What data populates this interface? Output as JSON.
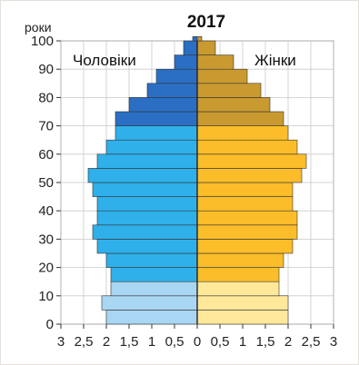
{
  "chart_data": {
    "type": "bar",
    "orientation": "horizontal-pyramid",
    "title": "2017",
    "ylabel": "роки",
    "xlabel": "",
    "y_ticks": [
      "0",
      "10",
      "20",
      "30",
      "40",
      "50",
      "60",
      "70",
      "80",
      "90",
      "100"
    ],
    "x_ticks_left": [
      "3",
      "2,5",
      "2",
      "1,5",
      "1",
      "0,5",
      "0"
    ],
    "x_ticks_right": [
      "0,5",
      "1",
      "1,5",
      "2",
      "2,5",
      "3"
    ],
    "xlim": [
      0,
      3
    ],
    "ylim": [
      0,
      100
    ],
    "grid": true,
    "age_group_width": 5,
    "age_groups_start": [
      0,
      5,
      10,
      15,
      20,
      25,
      30,
      35,
      40,
      45,
      50,
      55,
      60,
      65,
      70,
      75,
      80,
      85,
      90,
      95,
      100
    ],
    "series": [
      {
        "name": "Чоловіки",
        "side": "left",
        "values": [
          2.0,
          2.1,
          1.9,
          1.9,
          2.0,
          2.2,
          2.3,
          2.2,
          2.2,
          2.3,
          2.4,
          2.2,
          2.0,
          1.8,
          1.8,
          1.5,
          1.1,
          0.9,
          0.5,
          0.3,
          0.1
        ],
        "colors": [
          "#a9d6f2",
          "#a9d6f2",
          "#a9d6f2",
          "#2fb0ea",
          "#2fb0ea",
          "#2fb0ea",
          "#2fb0ea",
          "#2fb0ea",
          "#2fb0ea",
          "#2fb0ea",
          "#2fb0ea",
          "#2fb0ea",
          "#2fb0ea",
          "#2fb0ea",
          "#2a6fc4",
          "#2a6fc4",
          "#2a6fc4",
          "#2a6fc4",
          "#2a6fc4",
          "#2a6fc4",
          "#2a6fc4"
        ]
      },
      {
        "name": "Жінки",
        "side": "right",
        "values": [
          2.0,
          2.0,
          1.8,
          1.8,
          1.9,
          2.1,
          2.2,
          2.2,
          2.1,
          2.1,
          2.3,
          2.4,
          2.2,
          2.0,
          1.9,
          1.6,
          1.4,
          1.1,
          0.8,
          0.4,
          0.1
        ],
        "colors": [
          "#ffe89a",
          "#ffe89a",
          "#ffe89a",
          "#fbbd2a",
          "#fbbd2a",
          "#fbbd2a",
          "#fbbd2a",
          "#fbbd2a",
          "#fbbd2a",
          "#fbbd2a",
          "#fbbd2a",
          "#fbbd2a",
          "#fbbd2a",
          "#fbbd2a",
          "#c99a30",
          "#c99a30",
          "#c99a30",
          "#c99a30",
          "#c99a30",
          "#c99a30",
          "#c99a30"
        ]
      }
    ]
  }
}
